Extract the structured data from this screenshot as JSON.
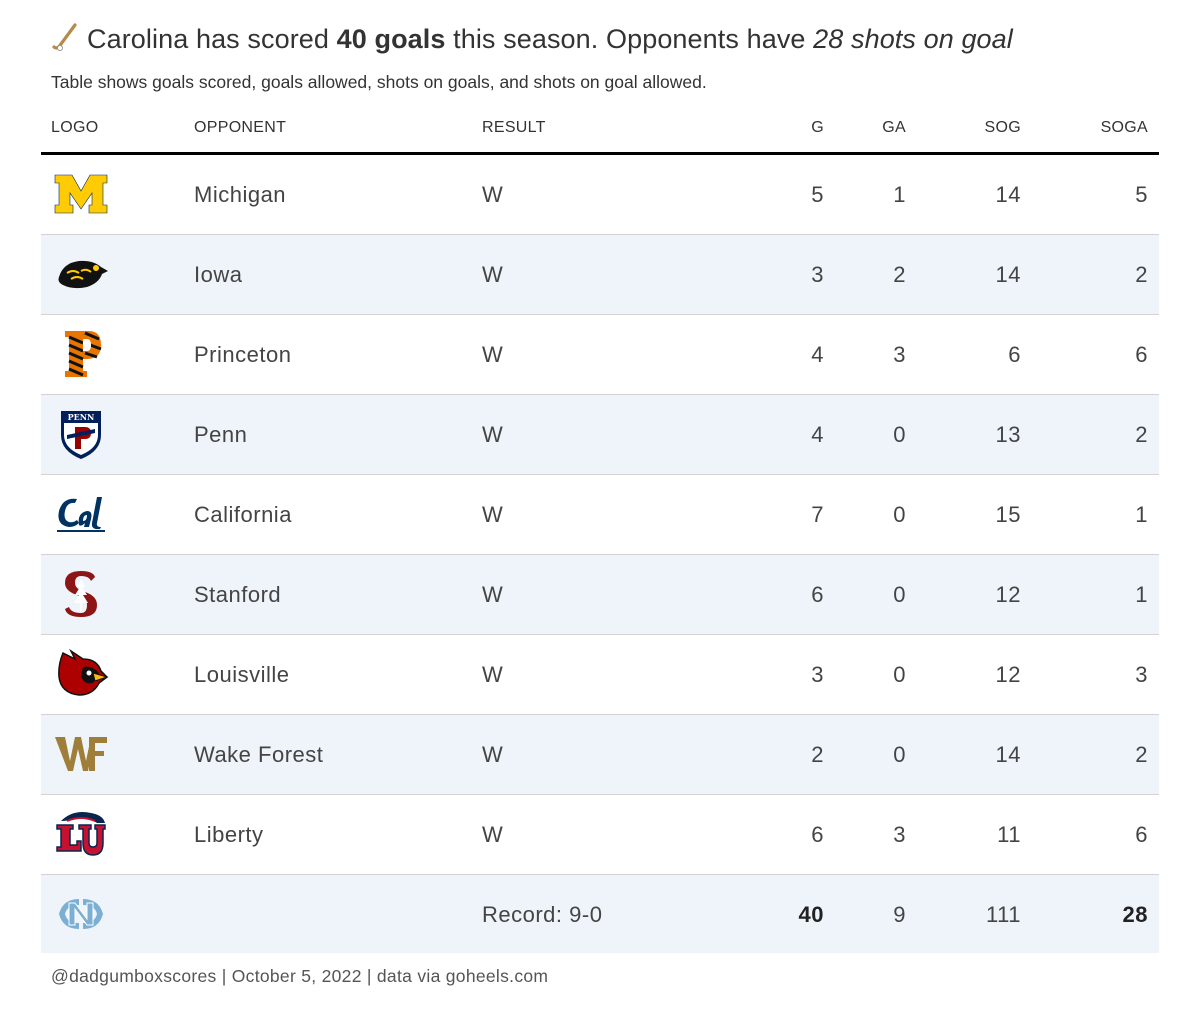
{
  "title": {
    "prefix": "Carolina has scored ",
    "bold": "40 goals",
    "middle": " this season. Opponents have ",
    "italic": "28 shots on goal"
  },
  "subtitle": "Table shows goals scored, goals allowed, shots on goals, and shots on goal allowed.",
  "columns": {
    "logo": "LOGO",
    "opponent": "OPPONENT",
    "result": "RESULT",
    "g": "G",
    "ga": "GA",
    "sog": "SOG",
    "soga": "SOGA"
  },
  "rows": [
    {
      "logo": "michigan-logo",
      "opponent": "Michigan",
      "result": "W",
      "g": "5",
      "ga": "1",
      "sog": "14",
      "soga": "5"
    },
    {
      "logo": "iowa-logo",
      "opponent": "Iowa",
      "result": "W",
      "g": "3",
      "ga": "2",
      "sog": "14",
      "soga": "2"
    },
    {
      "logo": "princeton-logo",
      "opponent": "Princeton",
      "result": "W",
      "g": "4",
      "ga": "3",
      "sog": "6",
      "soga": "6"
    },
    {
      "logo": "penn-logo",
      "opponent": "Penn",
      "result": "W",
      "g": "4",
      "ga": "0",
      "sog": "13",
      "soga": "2"
    },
    {
      "logo": "california-logo",
      "opponent": "California",
      "result": "W",
      "g": "7",
      "ga": "0",
      "sog": "15",
      "soga": "1"
    },
    {
      "logo": "stanford-logo",
      "opponent": "Stanford",
      "result": "W",
      "g": "6",
      "ga": "0",
      "sog": "12",
      "soga": "1"
    },
    {
      "logo": "louisville-logo",
      "opponent": "Louisville",
      "result": "W",
      "g": "3",
      "ga": "0",
      "sog": "12",
      "soga": "3"
    },
    {
      "logo": "wake-forest-logo",
      "opponent": "Wake Forest",
      "result": "W",
      "g": "2",
      "ga": "0",
      "sog": "14",
      "soga": "2"
    },
    {
      "logo": "liberty-logo",
      "opponent": "Liberty",
      "result": "W",
      "g": "6",
      "ga": "3",
      "sog": "11",
      "soga": "6"
    }
  ],
  "total": {
    "logo": "unc-logo",
    "result": "Record: 9-0",
    "g": "40",
    "ga": "9",
    "sog": "111",
    "soga": "28"
  },
  "footer": "@dadgumboxscores | October 5, 2022 | data via goheels.com",
  "colors": {
    "alt_row": "#eef4fa",
    "michigan": "#ffcb05",
    "princeton": "#e77500",
    "penn": "#011f5b",
    "penn_red": "#990000",
    "cal": "#003262",
    "stanford": "#8c1515",
    "louisville": "#ad0000",
    "wake_forest": "#9e7e38",
    "liberty_blue": "#0a254e",
    "liberty_red": "#c41230",
    "unc": "#7bafd4"
  }
}
